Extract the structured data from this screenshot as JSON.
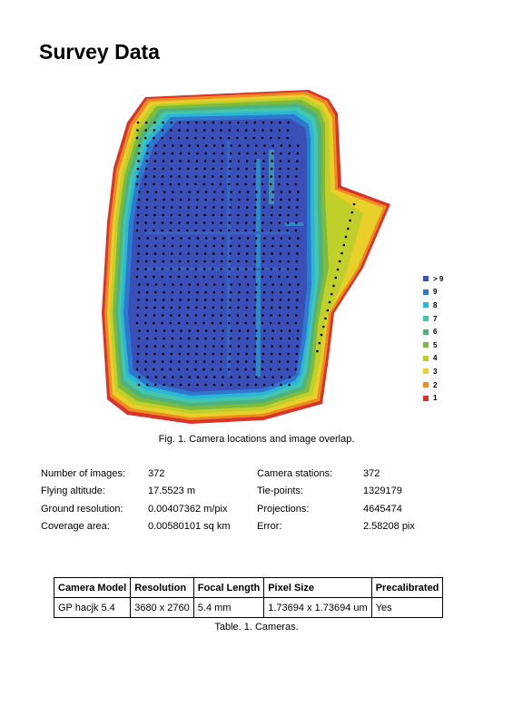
{
  "title": "Survey Data",
  "legend": [
    {
      "label": "> 9",
      "color": "#3a4fb8"
    },
    {
      "label": "9",
      "color": "#2f78d0"
    },
    {
      "label": "8",
      "color": "#2cb6d6"
    },
    {
      "label": "7",
      "color": "#43c6b0"
    },
    {
      "label": "6",
      "color": "#4eb27a"
    },
    {
      "label": "5",
      "color": "#7dbb3f"
    },
    {
      "label": "4",
      "color": "#c0cf2a"
    },
    {
      "label": "3",
      "color": "#e8cf2a"
    },
    {
      "label": "2",
      "color": "#ef8a23"
    },
    {
      "label": "1",
      "color": "#d9342b"
    }
  ],
  "figure_caption": "Fig. 1. Camera locations and image overlap.",
  "stats": [
    {
      "label": "Number of images:",
      "value": "372",
      "label2": "Camera stations:",
      "value2": "372"
    },
    {
      "label": "Flying altitude:",
      "value": "17.5523 m",
      "label2": "Tie-points:",
      "value2": "1329179"
    },
    {
      "label": "Ground resolution:",
      "value": "0.00407362 m/pix",
      "label2": "Projections:",
      "value2": "4645474"
    },
    {
      "label": "Coverage area:",
      "value": "0.00580101 sq km",
      "label2": "Error:",
      "value2": "2.58208 pix"
    }
  ],
  "table": {
    "headers": [
      "Camera Model",
      "Resolution",
      "Focal Length",
      "Pixel Size",
      "Precalibrated"
    ],
    "rows": [
      [
        "GP hacjk 5.4",
        "3680 x 2760",
        "5.4 mm",
        "1.73694 x 1.73694 um",
        "Yes"
      ]
    ]
  },
  "table_caption": "Table. 1. Cameras."
}
